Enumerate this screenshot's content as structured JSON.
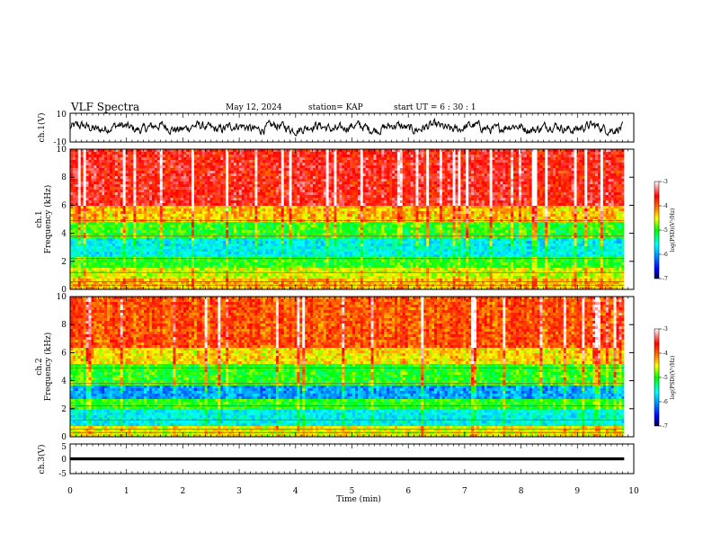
{
  "header": {
    "title": "VLF Spectra",
    "date": "May 12, 2024",
    "station": "station= KAP",
    "start": "start  UT =   6 : 30 : 1"
  },
  "colors": {
    "spectrogram_scale": [
      "#000040",
      "#0000ff",
      "#00a0ff",
      "#00ffff",
      "#00ff00",
      "#ffff00",
      "#ff8000",
      "#ff0000",
      "#ffffff"
    ]
  },
  "chart_data": [
    {
      "type": "line",
      "panel": "ch1-waveform",
      "ylabel": "ch.1(V)",
      "yticks": [
        "10",
        "-10"
      ],
      "ylim": [
        -10,
        10
      ],
      "xlim": [
        0,
        10
      ],
      "description_values": "noisy waveform oscillating roughly between -4 and 4 V over 0-9.8 min"
    },
    {
      "type": "heatmap",
      "panel": "ch1-spectrogram",
      "ylabel_line1": "ch.1",
      "ylabel_line2": "Frequency (kHz)",
      "yticks": [
        "0",
        "2",
        "4",
        "6",
        "8",
        "10"
      ],
      "ylim": [
        0,
        10
      ],
      "xlim": [
        0,
        9.83
      ],
      "bands_kHz_log10PSD": [
        {
          "from": 0,
          "to": 0.8,
          "level": -4.3
        },
        {
          "from": 0.8,
          "to": 1.6,
          "level": -4.6
        },
        {
          "from": 1.6,
          "to": 2.4,
          "level": -5.0
        },
        {
          "from": 2.4,
          "to": 3.6,
          "level": -5.6
        },
        {
          "from": 3.6,
          "to": 4.8,
          "level": -5.0
        },
        {
          "from": 4.8,
          "to": 6.0,
          "level": -4.3
        },
        {
          "from": 6.0,
          "to": 10,
          "level": -3.6
        }
      ],
      "colorbar": {
        "label": "log(PSD)(V²/Hz)",
        "ticks": [
          "-3",
          "-4",
          "-5",
          "-6",
          "-7"
        ],
        "range": [
          -7,
          -3
        ]
      }
    },
    {
      "type": "heatmap",
      "panel": "ch2-spectrogram",
      "ylabel_line1": "ch.2",
      "ylabel_line2": "Frequency (kHz)",
      "yticks": [
        "0",
        "2",
        "4",
        "6",
        "8",
        "10"
      ],
      "ylim": [
        0,
        10
      ],
      "xlim": [
        0,
        9.83
      ],
      "bands_kHz_log10PSD": [
        {
          "from": 0,
          "to": 0.8,
          "level": -4.5
        },
        {
          "from": 0.8,
          "to": 2.0,
          "level": -5.6
        },
        {
          "from": 2.0,
          "to": 2.6,
          "level": -5.0
        },
        {
          "from": 2.6,
          "to": 3.6,
          "level": -6.0
        },
        {
          "from": 3.6,
          "to": 5.2,
          "level": -5.0
        },
        {
          "from": 5.2,
          "to": 6.4,
          "level": -4.4
        },
        {
          "from": 6.4,
          "to": 10,
          "level": -3.9
        }
      ],
      "colorbar": {
        "label": "log(PSD)(V²/Hz)",
        "ticks": [
          "-3",
          "-4",
          "-5",
          "-6",
          "-7"
        ],
        "range": [
          -7,
          -3
        ]
      }
    },
    {
      "type": "line",
      "panel": "ch3-waveform",
      "ylabel": "ch.3(V)",
      "yticks": [
        "5",
        "0",
        "-5"
      ],
      "ylim": [
        -5,
        5
      ],
      "xlim": [
        0,
        10
      ],
      "level_V": 0,
      "band_halfwidth_V": 0.5
    }
  ],
  "xaxis": {
    "label": "Time  (min)",
    "ticks": [
      "0",
      "1",
      "2",
      "3",
      "4",
      "5",
      "6",
      "7",
      "8",
      "9",
      "10"
    ],
    "range": [
      0,
      10
    ]
  }
}
